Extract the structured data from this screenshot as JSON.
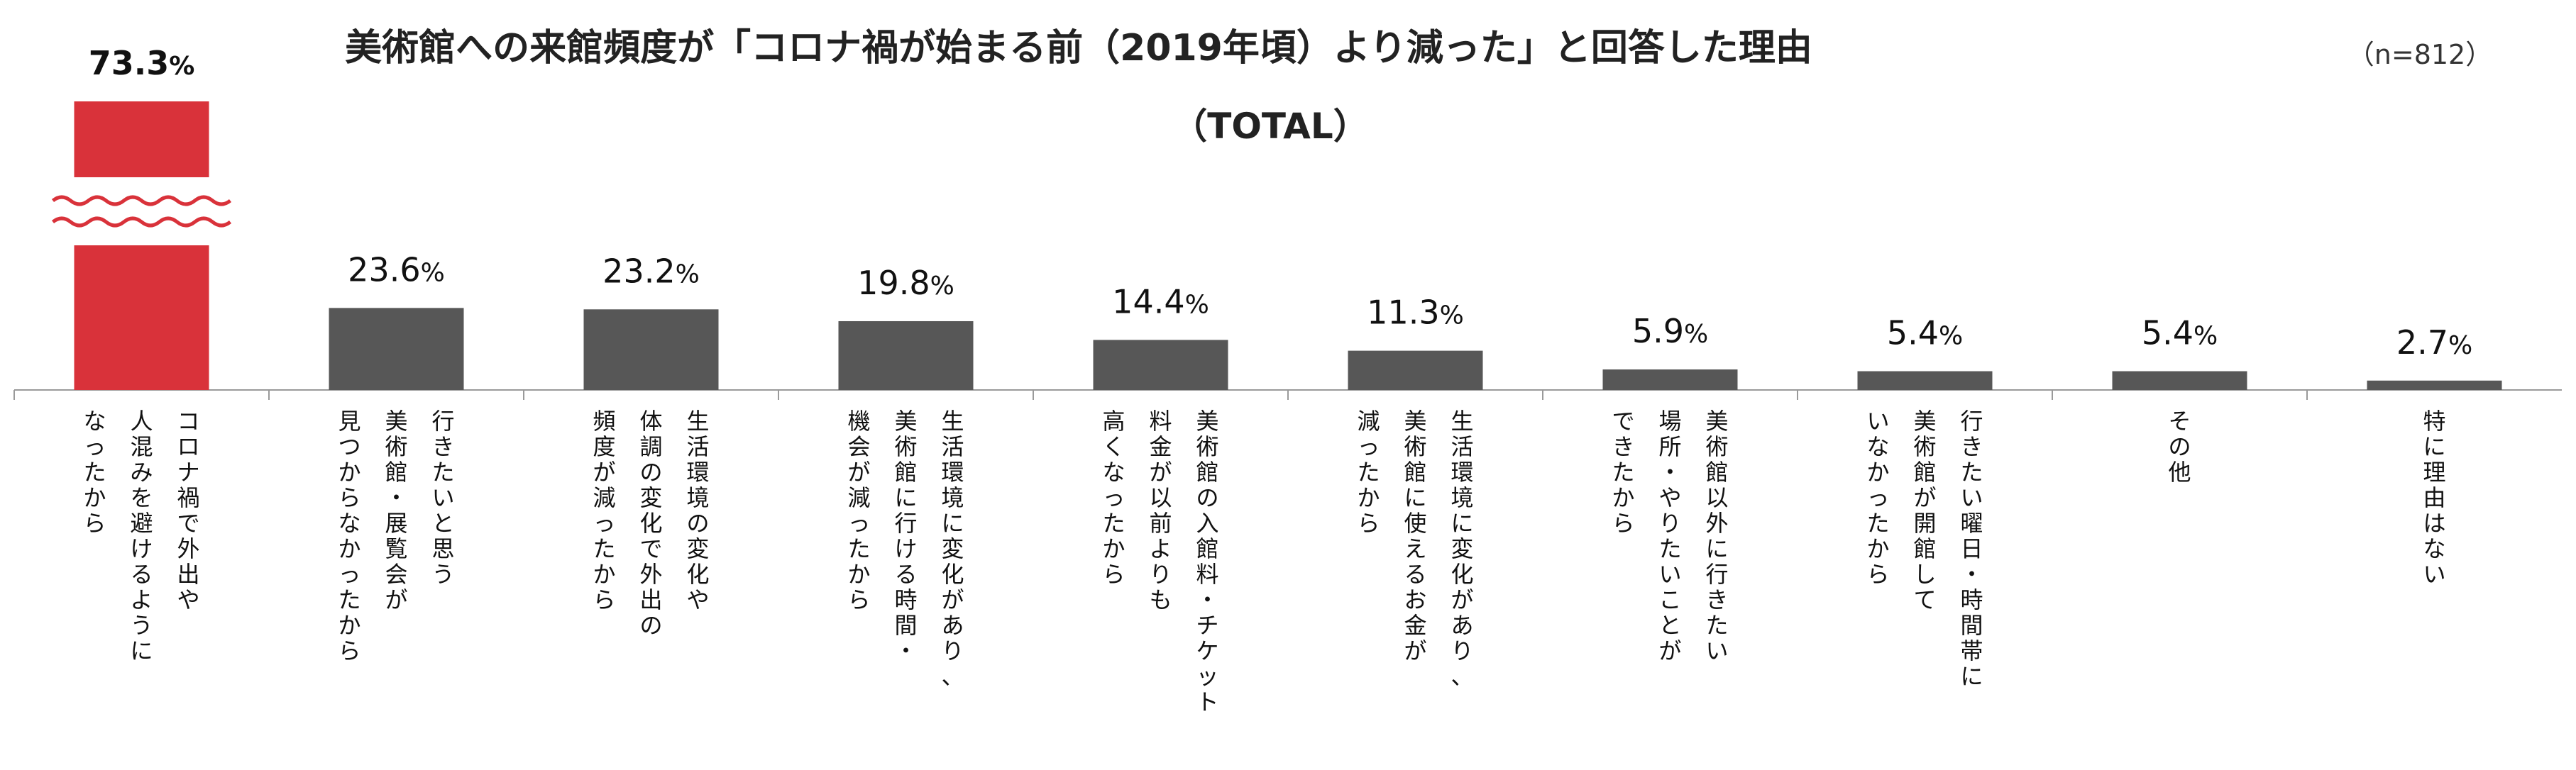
{
  "chart_data": {
    "type": "bar",
    "title": "美術館への来館頻度が「コロナ禍が始まる前（2019年頃）より減った」と回答した理由",
    "subtitle": "（TOTAL）",
    "sample_size": "（n=812）",
    "unit": "%",
    "highlight_color": "#d9323a",
    "bar_color": "#575757",
    "axis_break_index": 0,
    "categories": [
      [
        "コロナ禍で外出や",
        "人混みを避けるように",
        "なったから"
      ],
      [
        "行きたいと思う",
        "美術館・展覧会が",
        "見つからなかったから"
      ],
      [
        "生活環境の変化や",
        "体調の変化で外出の",
        "頻度が減ったから"
      ],
      [
        "生活環境に変化があり、",
        "美術館に行ける時間・",
        "機会が減ったから"
      ],
      [
        "美術館の入館料・チケット",
        "料金が以前よりも",
        "高くなったから"
      ],
      [
        "生活環境に変化があり、",
        "美術館に使えるお金が",
        "減ったから"
      ],
      [
        "美術館以外に行きたい",
        "場所・やりたいことが",
        "できたから"
      ],
      [
        "行きたい曜日・時間帯に",
        "美術館が開館して",
        "いなかったから"
      ],
      [
        "その他"
      ],
      [
        "特に理由はない"
      ]
    ],
    "values": [
      73.3,
      23.6,
      23.2,
      19.8,
      14.4,
      11.3,
      5.9,
      5.4,
      5.4,
      2.7
    ],
    "value_labels": [
      "73.3",
      "23.6",
      "23.2",
      "19.8",
      "14.4",
      "11.3",
      "5.9",
      "5.4",
      "5.4",
      "2.7"
    ]
  }
}
